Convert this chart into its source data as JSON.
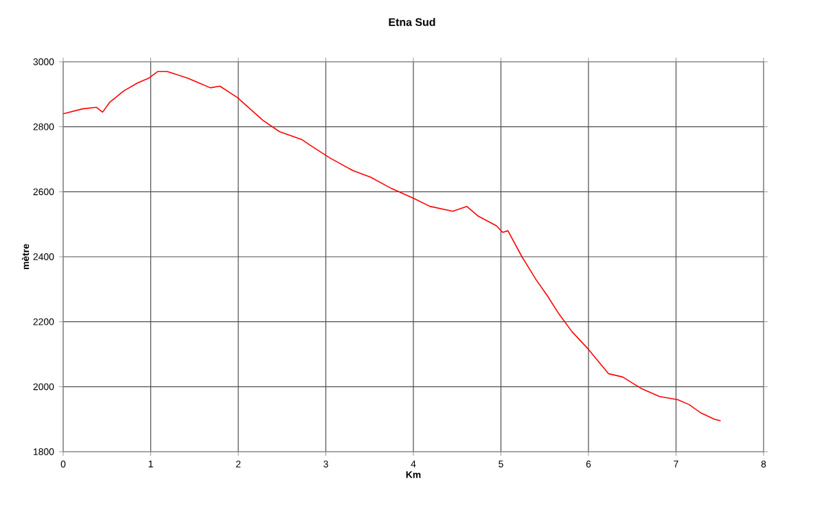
{
  "chart_data": {
    "type": "line",
    "title": "Etna Sud",
    "xlabel": "Km",
    "ylabel": "mètre",
    "xlim": [
      0,
      8
    ],
    "xticks": [
      0,
      1,
      2,
      3,
      4,
      5,
      6,
      7,
      8
    ],
    "ylim": [
      1800,
      3000
    ],
    "yticks": [
      1800,
      2000,
      2200,
      2400,
      2600,
      2800,
      3000
    ],
    "grid": true,
    "marker": "none",
    "line_style": "solid",
    "series": [
      {
        "color": "#ff0000",
        "x": [
          0,
          0.22,
          0.38,
          0.45,
          0.53,
          0.69,
          0.85,
          0.98,
          1.08,
          1.19,
          1.42,
          1.55,
          1.68,
          1.79,
          1.99,
          2.28,
          2.47,
          2.73,
          2.81,
          3.04,
          3.31,
          3.51,
          3.75,
          4.0,
          4.19,
          4.45,
          4.61,
          4.74,
          4.95,
          5.02,
          5.08,
          5.24,
          5.4,
          5.53,
          5.66,
          5.81,
          6.0,
          6.23,
          6.39,
          6.6,
          6.81,
          7.02,
          7.15,
          7.28,
          7.44,
          7.51
        ],
        "values": [
          2840,
          2855,
          2860,
          2845,
          2875,
          2910,
          2935,
          2950,
          2970,
          2970,
          2950,
          2935,
          2920,
          2925,
          2890,
          2820,
          2785,
          2760,
          2745,
          2705,
          2665,
          2645,
          2610,
          2580,
          2555,
          2540,
          2555,
          2525,
          2495,
          2475,
          2480,
          2400,
          2330,
          2280,
          2225,
          2170,
          2115,
          2040,
          2030,
          1995,
          1970,
          1960,
          1945,
          1920,
          1900,
          1895
        ]
      }
    ]
  }
}
